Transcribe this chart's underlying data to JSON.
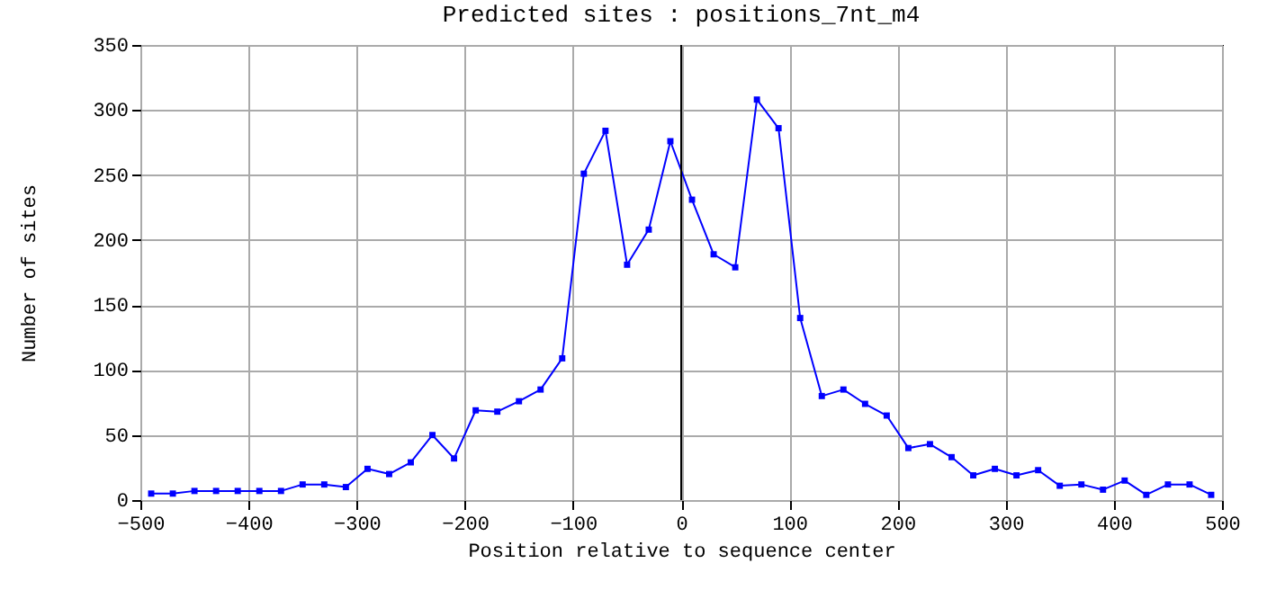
{
  "chart_data": {
    "type": "line",
    "title": "Predicted sites : positions_7nt_m4",
    "xlabel": "Position relative to sequence center",
    "ylabel": "Number of sites",
    "x": [
      -490,
      -470,
      -450,
      -430,
      -410,
      -390,
      -370,
      -350,
      -330,
      -310,
      -290,
      -270,
      -250,
      -230,
      -210,
      -190,
      -170,
      -150,
      -130,
      -110,
      -90,
      -70,
      -50,
      -30,
      -10,
      10,
      30,
      50,
      70,
      90,
      110,
      130,
      150,
      170,
      190,
      210,
      230,
      250,
      270,
      290,
      310,
      330,
      350,
      370,
      390,
      410,
      430,
      450,
      470,
      490
    ],
    "series": [
      {
        "color": "#0000ff",
        "values": [
          5,
          5,
          7,
          7,
          7,
          7,
          7,
          12,
          12,
          10,
          24,
          20,
          29,
          50,
          32,
          69,
          68,
          76,
          85,
          109,
          251,
          284,
          181,
          208,
          276,
          231,
          189,
          179,
          308,
          286,
          140,
          80,
          85,
          74,
          65,
          40,
          43,
          33,
          19,
          24,
          19,
          23,
          11,
          12,
          8,
          15,
          4,
          12,
          12,
          4
        ]
      }
    ],
    "xlim": [
      -500,
      500
    ],
    "xticks": [
      -500,
      -400,
      -300,
      -200,
      -100,
      0,
      100,
      200,
      300,
      400,
      500
    ],
    "ylim": [
      0,
      350
    ],
    "yticks": [
      0,
      50,
      100,
      150,
      200,
      250,
      300,
      350
    ],
    "grid": true,
    "marker": "square",
    "line_style": "solid",
    "ref_lines": [
      {
        "axis": "x",
        "value": 0,
        "color": "#000000"
      }
    ]
  }
}
